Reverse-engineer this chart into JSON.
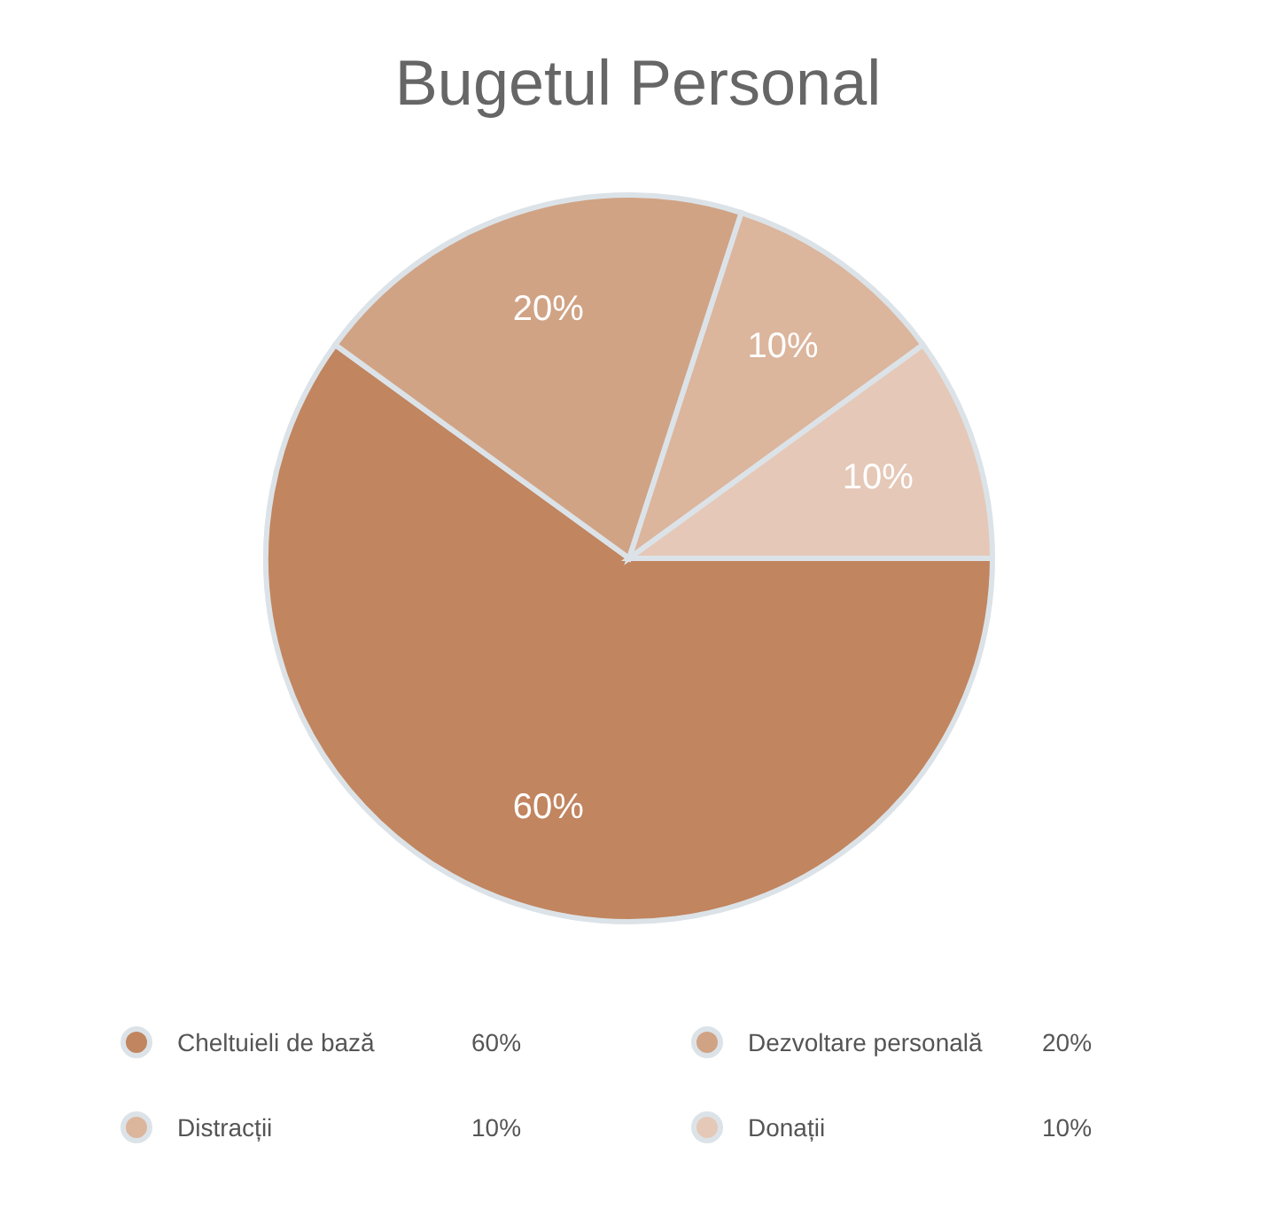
{
  "chart_data": {
    "type": "pie",
    "title": "Bugetul Personal",
    "categories": [
      "Cheltuieli de bază",
      "Dezvoltare personală",
      "Distracții",
      "Donații"
    ],
    "values": [
      60,
      20,
      10,
      10
    ],
    "colors": [
      "#c1855f",
      "#d0a385",
      "#dbb59c",
      "#e5c8b7"
    ],
    "value_labels": [
      "60%",
      "20%",
      "10%",
      "10%"
    ],
    "legend": "bottom"
  }
}
